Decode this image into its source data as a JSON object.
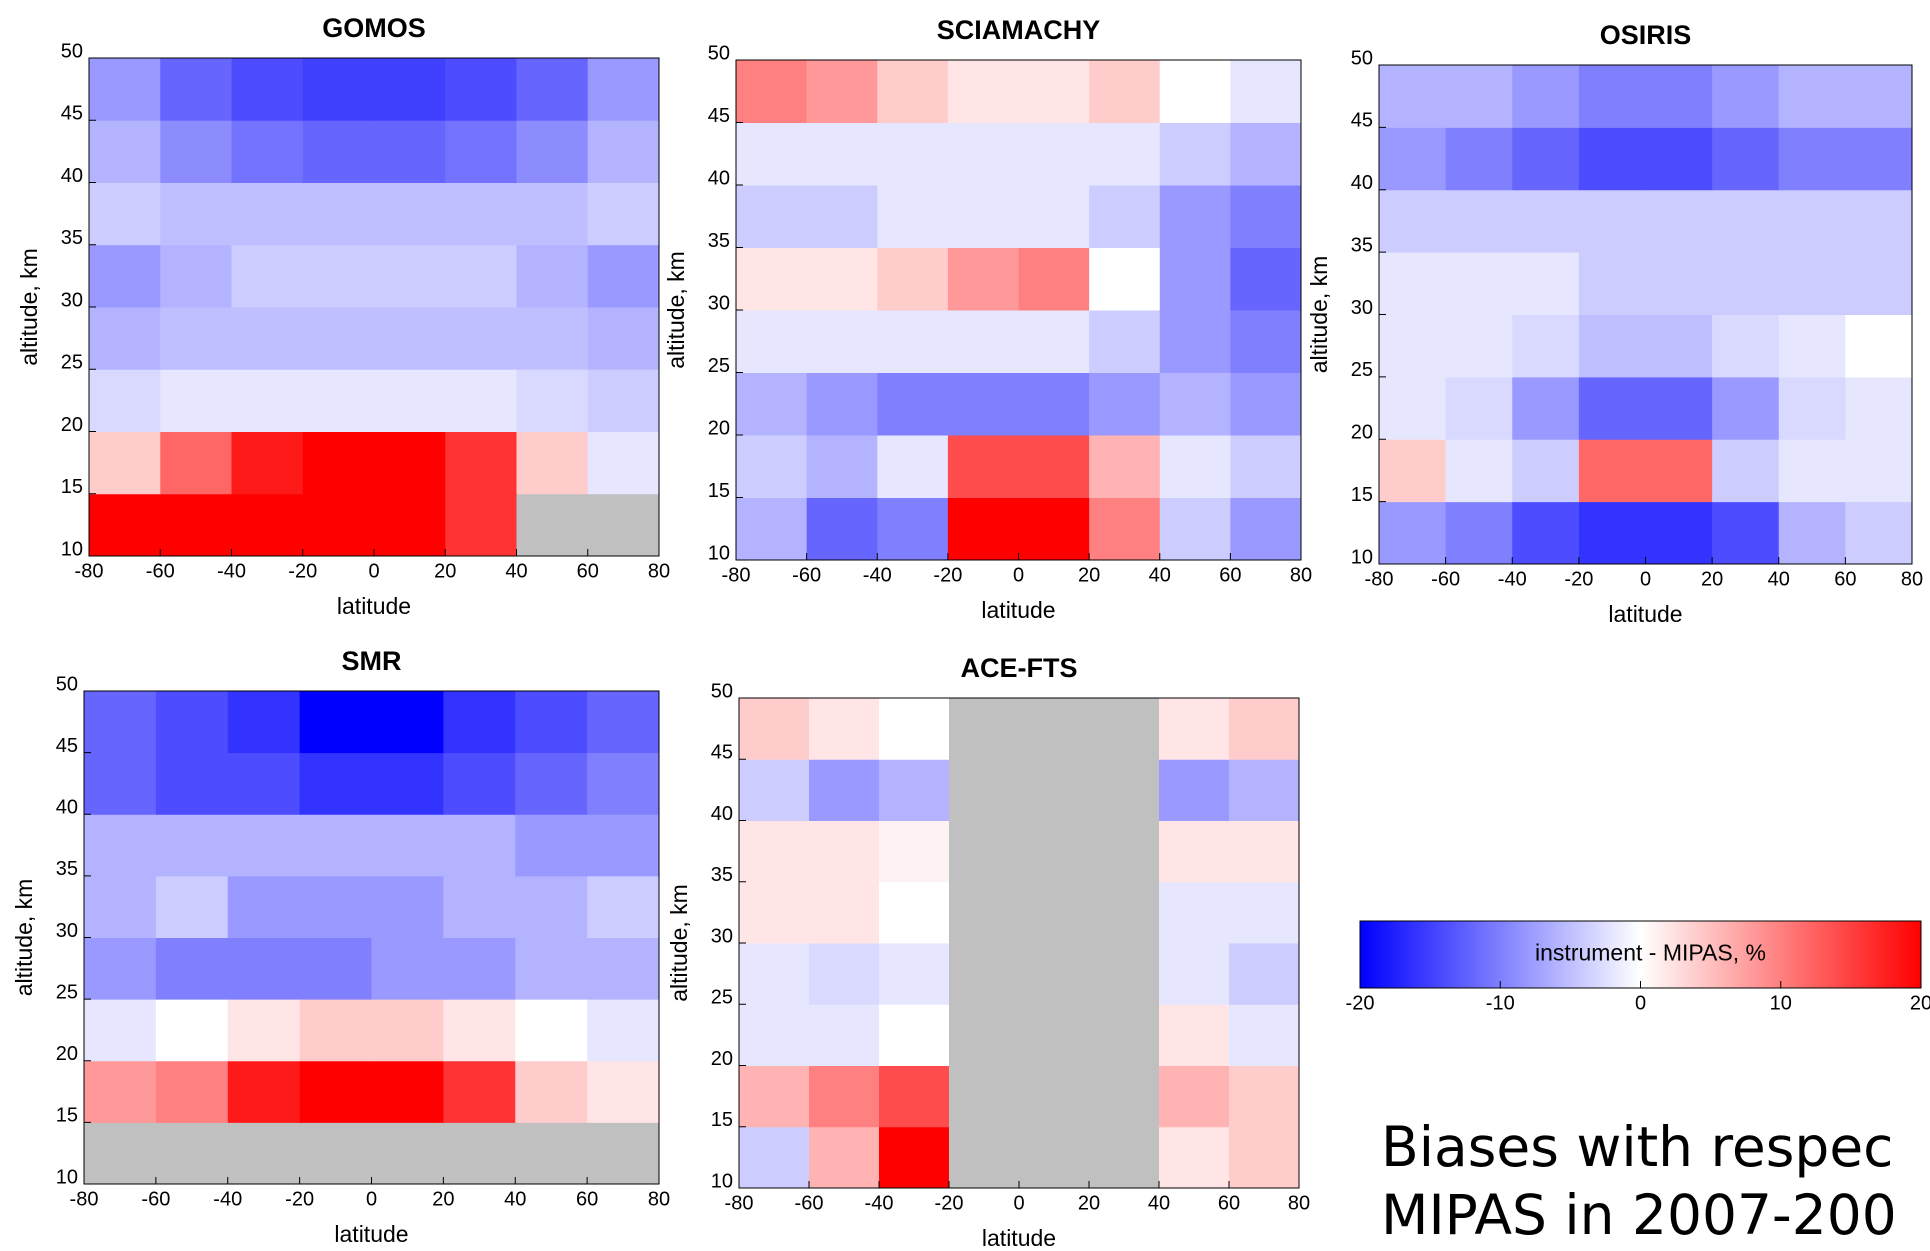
{
  "chart_data": [
    {
      "type": "heatmap",
      "title": "GOMOS",
      "xlabel": "latitude",
      "ylabel": "altitude, km",
      "x": [
        -70,
        -50,
        -30,
        -10,
        10,
        30,
        50,
        70
      ],
      "y": [
        12.5,
        17.5,
        22.5,
        27.5,
        32.5,
        37.5,
        42.5,
        47.5
      ],
      "values": [
        [
          20,
          20,
          20,
          20,
          20,
          16,
          null,
          null
        ],
        [
          4,
          12,
          18,
          20,
          20,
          16,
          4,
          -2
        ],
        [
          -3,
          -2,
          -2,
          -2,
          -2,
          -2,
          -3,
          -4
        ],
        [
          -6,
          -5,
          -5,
          -5,
          -5,
          -5,
          -5,
          -6
        ],
        [
          -8,
          -6,
          -4,
          -4,
          -4,
          -4,
          -6,
          -8
        ],
        [
          -4,
          -5,
          -5,
          -5,
          -5,
          -5,
          -5,
          -4
        ],
        [
          -6,
          -9,
          -11,
          -12,
          -12,
          -11,
          -9,
          -6
        ],
        [
          -8,
          -12,
          -14,
          -15,
          -15,
          -14,
          -12,
          -8
        ]
      ],
      "xlim": [
        -80,
        80
      ],
      "ylim": [
        10,
        50
      ],
      "xticks": [
        -80,
        -60,
        -40,
        -20,
        0,
        20,
        40,
        60,
        80
      ],
      "yticks": [
        10,
        15,
        20,
        25,
        30,
        35,
        40,
        45,
        50
      ]
    },
    {
      "type": "heatmap",
      "title": "SCIAMACHY",
      "xlabel": "latitude",
      "ylabel": "altitude, km",
      "x": [
        -70,
        -50,
        -30,
        -10,
        10,
        30,
        50,
        70
      ],
      "y": [
        12.5,
        17.5,
        22.5,
        27.5,
        32.5,
        37.5,
        42.5,
        47.5
      ],
      "values": [
        [
          -6,
          -12,
          -10,
          20,
          20,
          10,
          -4,
          -8
        ],
        [
          -4,
          -6,
          -2,
          14,
          14,
          6,
          -2,
          -4
        ],
        [
          -6,
          -8,
          -10,
          -10,
          -10,
          -8,
          -6,
          -8
        ],
        [
          -2,
          -2,
          -2,
          -2,
          -2,
          -4,
          -8,
          -10
        ],
        [
          2,
          2,
          4,
          8,
          10,
          0,
          -8,
          -12
        ],
        [
          -4,
          -4,
          -2,
          -2,
          -2,
          -4,
          -8,
          -10
        ],
        [
          -2,
          -2,
          -2,
          -2,
          -2,
          -2,
          -4,
          -6
        ],
        [
          10,
          8,
          4,
          2,
          2,
          4,
          0,
          -2
        ]
      ],
      "xlim": [
        -80,
        80
      ],
      "ylim": [
        10,
        50
      ],
      "xticks": [
        -80,
        -60,
        -40,
        -20,
        0,
        20,
        40,
        60,
        80
      ],
      "yticks": [
        10,
        15,
        20,
        25,
        30,
        35,
        40,
        45,
        50
      ]
    },
    {
      "type": "heatmap",
      "title": "OSIRIS",
      "xlabel": "latitude",
      "ylabel": "altitude, km",
      "x": [
        -70,
        -50,
        -30,
        -10,
        10,
        30,
        50,
        70
      ],
      "y": [
        12.5,
        17.5,
        22.5,
        27.5,
        32.5,
        37.5,
        42.5,
        47.5
      ],
      "values": [
        [
          -8,
          -10,
          -14,
          -16,
          -16,
          -14,
          -6,
          -4
        ],
        [
          4,
          -2,
          -4,
          12,
          12,
          -4,
          -2,
          -2
        ],
        [
          -2,
          -3,
          -8,
          -12,
          -12,
          -8,
          -3,
          -2
        ],
        [
          -2,
          -2,
          -3,
          -5,
          -5,
          -3,
          -2,
          0
        ],
        [
          -2,
          -2,
          -2,
          -4,
          -4,
          -4,
          -4,
          -4
        ],
        [
          -4,
          -4,
          -4,
          -4,
          -4,
          -4,
          -4,
          -4
        ],
        [
          -8,
          -10,
          -12,
          -14,
          -14,
          -12,
          -10,
          -10
        ],
        [
          -6,
          -6,
          -8,
          -10,
          -10,
          -8,
          -6,
          -6
        ]
      ],
      "xlim": [
        -80,
        80
      ],
      "ylim": [
        10,
        50
      ],
      "xticks": [
        -80,
        -60,
        -40,
        -20,
        0,
        20,
        40,
        60,
        80
      ],
      "yticks": [
        10,
        15,
        20,
        25,
        30,
        35,
        40,
        45,
        50
      ]
    },
    {
      "type": "heatmap",
      "title": "SMR",
      "xlabel": "latitude",
      "ylabel": "altitude, km",
      "x": [
        -70,
        -50,
        -30,
        -10,
        10,
        30,
        50,
        70
      ],
      "y": [
        12.5,
        17.5,
        22.5,
        27.5,
        32.5,
        37.5,
        42.5,
        47.5
      ],
      "values": [
        [
          null,
          null,
          null,
          null,
          null,
          null,
          null,
          null
        ],
        [
          8,
          10,
          18,
          20,
          20,
          16,
          4,
          2
        ],
        [
          -2,
          0,
          2,
          4,
          4,
          2,
          0,
          -2
        ],
        [
          -8,
          -10,
          -10,
          -10,
          -8,
          -8,
          -6,
          -6
        ],
        [
          -6,
          -4,
          -8,
          -8,
          -8,
          -6,
          -6,
          -4
        ],
        [
          -6,
          -6,
          -6,
          -6,
          -6,
          -6,
          -8,
          -8
        ],
        [
          -12,
          -14,
          -14,
          -16,
          -16,
          -14,
          -12,
          -10
        ],
        [
          -12,
          -14,
          -16,
          -20,
          -20,
          -16,
          -14,
          -12
        ]
      ],
      "xlim": [
        -80,
        80
      ],
      "ylim": [
        10,
        50
      ],
      "xticks": [
        -80,
        -60,
        -40,
        -20,
        0,
        20,
        40,
        60,
        80
      ],
      "yticks": [
        10,
        15,
        20,
        25,
        30,
        35,
        40,
        45,
        50
      ]
    },
    {
      "type": "heatmap",
      "title": "ACE-FTS",
      "xlabel": "latitude",
      "ylabel": "altitude, km",
      "x": [
        -70,
        -50,
        -30,
        -10,
        10,
        30,
        50,
        70
      ],
      "y": [
        12.5,
        17.5,
        22.5,
        27.5,
        32.5,
        37.5,
        42.5,
        47.5
      ],
      "values": [
        [
          -4,
          6,
          20,
          null,
          null,
          null,
          2,
          4
        ],
        [
          6,
          10,
          14,
          null,
          null,
          null,
          6,
          4
        ],
        [
          -2,
          -2,
          0,
          null,
          null,
          null,
          2,
          -2
        ],
        [
          -2,
          -3,
          -2,
          null,
          null,
          null,
          -2,
          -4
        ],
        [
          2,
          2,
          0,
          null,
          null,
          null,
          -2,
          -2
        ],
        [
          2,
          2,
          1,
          null,
          null,
          null,
          2,
          2
        ],
        [
          -4,
          -8,
          -6,
          null,
          null,
          null,
          -8,
          -6
        ],
        [
          4,
          2,
          0,
          null,
          null,
          null,
          2,
          4
        ]
      ],
      "xlim": [
        -80,
        80
      ],
      "ylim": [
        10,
        50
      ],
      "xticks": [
        -80,
        -60,
        -40,
        -20,
        0,
        20,
        40,
        60,
        80
      ],
      "yticks": [
        10,
        15,
        20,
        25,
        30,
        35,
        40,
        45,
        50
      ]
    }
  ],
  "colorbar": {
    "label": "instrument - MIPAS, %",
    "zlim": [
      -20,
      20
    ],
    "ticks": [
      -20,
      -10,
      0,
      10,
      20
    ],
    "colors": [
      "#0000ff",
      "#ffffff",
      "#ff0000"
    ],
    "missing_color": "#c0c0c0"
  },
  "caption": {
    "lines": [
      "Biases  with respec",
      "MIPAS in 2007-200"
    ]
  }
}
